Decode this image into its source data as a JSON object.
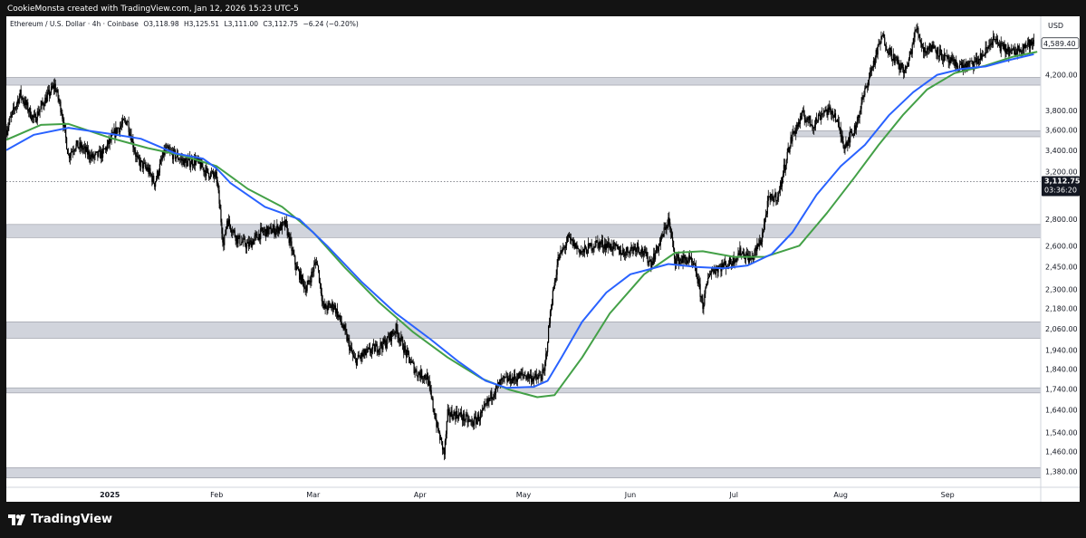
{
  "header": {
    "caption": "CookieMonsta created with TradingView.com, Jan 12, 2026 15:23 UTC-5"
  },
  "legend": {
    "symbol": "Ethereum / U.S. Dollar · 4h · Coinbase",
    "open": "O3,118.98",
    "high": "H3,125.51",
    "low": "L3,111.00",
    "close": "C3,112.75",
    "change": "−6.24 (−0.20%)"
  },
  "price_axis": {
    "currency": "USD",
    "current_price_label": "3,112.75",
    "countdown": "03:36:20",
    "top_price_label": "4,589.40"
  },
  "footer": {
    "brand": "TradingView"
  },
  "colors": {
    "candles": "#000000",
    "ma_fast": "#2962ff",
    "ma_slow": "#43a047",
    "zones": "#d1d4dc",
    "background": "#ffffff",
    "frame": "#131313"
  },
  "chart_data": {
    "type": "line",
    "log_scale": true,
    "grid": false,
    "y_range": [
      1320,
      4950
    ],
    "x_range": [
      "2024-12-02",
      "2025-09-28"
    ],
    "y_ticks": [
      {
        "value": 1380,
        "label": "1,380.00"
      },
      {
        "value": 1460,
        "label": "1,460.00"
      },
      {
        "value": 1540,
        "label": "1,540.00"
      },
      {
        "value": 1640,
        "label": "1,640.00"
      },
      {
        "value": 1740,
        "label": "1,740.00"
      },
      {
        "value": 1840,
        "label": "1,840.00"
      },
      {
        "value": 1940,
        "label": "1,940.00"
      },
      {
        "value": 2060,
        "label": "2,060.00"
      },
      {
        "value": 2180,
        "label": "2,180.00"
      },
      {
        "value": 2300,
        "label": "2,300.00"
      },
      {
        "value": 2450,
        "label": "2,450.00"
      },
      {
        "value": 2600,
        "label": "2,600.00"
      },
      {
        "value": 2800,
        "label": "2,800.00"
      },
      {
        "value": 3200,
        "label": "3,200.00"
      },
      {
        "value": 3400,
        "label": "3,400.00"
      },
      {
        "value": 3600,
        "label": "3,600.00"
      },
      {
        "value": 3800,
        "label": "3,800.00"
      },
      {
        "value": 4200,
        "label": "4,200.00"
      }
    ],
    "x_ticks": [
      {
        "date": "2025-01-01",
        "label": "2025",
        "bold": true
      },
      {
        "date": "2025-02-01",
        "label": "Feb"
      },
      {
        "date": "2025-03-01",
        "label": "Mar"
      },
      {
        "date": "2025-04-01",
        "label": "Apr"
      },
      {
        "date": "2025-05-01",
        "label": "May"
      },
      {
        "date": "2025-06-01",
        "label": "Jun"
      },
      {
        "date": "2025-07-01",
        "label": "Jul"
      },
      {
        "date": "2025-08-01",
        "label": "Aug"
      },
      {
        "date": "2025-09-01",
        "label": "Sep"
      }
    ],
    "current_price": 3112.75,
    "zones": [
      {
        "from": 4080,
        "to": 4170,
        "start": "2024-12-02",
        "end": "2025-09-28"
      },
      {
        "from": 3530,
        "to": 3590,
        "start": "2025-07-19",
        "end": "2025-09-28"
      },
      {
        "from": 2660,
        "to": 2760,
        "start": "2024-12-02",
        "end": "2025-09-28"
      },
      {
        "from": 2005,
        "to": 2100,
        "start": "2024-12-02",
        "end": "2025-09-28"
      },
      {
        "from": 1720,
        "to": 1745,
        "start": "2024-12-02",
        "end": "2025-09-28"
      },
      {
        "from": 1355,
        "to": 1395,
        "start": "2024-12-02",
        "end": "2025-09-28"
      }
    ],
    "series": [
      {
        "kind": "price",
        "points": [
          [
            "2024-12-02",
            3600
          ],
          [
            "2024-12-06",
            3980
          ],
          [
            "2024-12-10",
            3700
          ],
          [
            "2024-12-13",
            3900
          ],
          [
            "2024-12-16",
            4080
          ],
          [
            "2024-12-18",
            3800
          ],
          [
            "2024-12-20",
            3350
          ],
          [
            "2024-12-22",
            3450
          ],
          [
            "2024-12-24",
            3420
          ],
          [
            "2024-12-27",
            3330
          ],
          [
            "2024-12-30",
            3370
          ],
          [
            "2025-01-03",
            3600
          ],
          [
            "2025-01-06",
            3700
          ],
          [
            "2025-01-09",
            3300
          ],
          [
            "2025-01-12",
            3220
          ],
          [
            "2025-01-14",
            3100
          ],
          [
            "2025-01-17",
            3400
          ],
          [
            "2025-01-20",
            3350
          ],
          [
            "2025-01-23",
            3280
          ],
          [
            "2025-01-26",
            3300
          ],
          [
            "2025-01-29",
            3200
          ],
          [
            "2025-02-01",
            3150
          ],
          [
            "2025-02-03",
            2600
          ],
          [
            "2025-02-04",
            2800
          ],
          [
            "2025-02-07",
            2650
          ],
          [
            "2025-02-10",
            2600
          ],
          [
            "2025-02-14",
            2700
          ],
          [
            "2025-02-18",
            2720
          ],
          [
            "2025-02-21",
            2760
          ],
          [
            "2025-02-24",
            2450
          ],
          [
            "2025-02-27",
            2300
          ],
          [
            "2025-03-02",
            2500
          ],
          [
            "2025-03-04",
            2180
          ],
          [
            "2025-03-07",
            2200
          ],
          [
            "2025-03-10",
            2050
          ],
          [
            "2025-03-13",
            1880
          ],
          [
            "2025-03-16",
            1920
          ],
          [
            "2025-03-19",
            1950
          ],
          [
            "2025-03-22",
            1980
          ],
          [
            "2025-03-25",
            2060
          ],
          [
            "2025-03-28",
            1920
          ],
          [
            "2025-03-31",
            1820
          ],
          [
            "2025-04-03",
            1800
          ],
          [
            "2025-04-06",
            1560
          ],
          [
            "2025-04-08",
            1450
          ],
          [
            "2025-04-09",
            1620
          ],
          [
            "2025-04-12",
            1620
          ],
          [
            "2025-04-16",
            1580
          ],
          [
            "2025-04-19",
            1620
          ],
          [
            "2025-04-22",
            1720
          ],
          [
            "2025-04-25",
            1780
          ],
          [
            "2025-04-28",
            1790
          ],
          [
            "2025-05-01",
            1810
          ],
          [
            "2025-05-05",
            1790
          ],
          [
            "2025-05-07",
            1820
          ],
          [
            "2025-05-09",
            2200
          ],
          [
            "2025-05-11",
            2500
          ],
          [
            "2025-05-14",
            2650
          ],
          [
            "2025-05-18",
            2550
          ],
          [
            "2025-05-22",
            2620
          ],
          [
            "2025-05-26",
            2600
          ],
          [
            "2025-05-30",
            2550
          ],
          [
            "2025-06-03",
            2600
          ],
          [
            "2025-06-07",
            2480
          ],
          [
            "2025-06-10",
            2650
          ],
          [
            "2025-06-12",
            2800
          ],
          [
            "2025-06-14",
            2500
          ],
          [
            "2025-06-18",
            2500
          ],
          [
            "2025-06-20",
            2420
          ],
          [
            "2025-06-22",
            2200
          ],
          [
            "2025-06-24",
            2420
          ],
          [
            "2025-06-27",
            2450
          ],
          [
            "2025-06-30",
            2480
          ],
          [
            "2025-07-03",
            2560
          ],
          [
            "2025-07-06",
            2500
          ],
          [
            "2025-07-09",
            2650
          ],
          [
            "2025-07-11",
            2950
          ],
          [
            "2025-07-14",
            3000
          ],
          [
            "2025-07-16",
            3300
          ],
          [
            "2025-07-18",
            3550
          ],
          [
            "2025-07-21",
            3750
          ],
          [
            "2025-07-24",
            3650
          ],
          [
            "2025-07-27",
            3800
          ],
          [
            "2025-07-30",
            3780
          ],
          [
            "2025-08-02",
            3450
          ],
          [
            "2025-08-05",
            3600
          ],
          [
            "2025-08-09",
            4150
          ],
          [
            "2025-08-13",
            4680
          ],
          [
            "2025-08-15",
            4500
          ],
          [
            "2025-08-18",
            4300
          ],
          [
            "2025-08-20",
            4250
          ],
          [
            "2025-08-23",
            4800
          ],
          [
            "2025-08-25",
            4500
          ],
          [
            "2025-08-28",
            4550
          ],
          [
            "2025-08-31",
            4400
          ],
          [
            "2025-09-03",
            4320
          ],
          [
            "2025-09-06",
            4300
          ],
          [
            "2025-09-09",
            4340
          ],
          [
            "2025-09-12",
            4480
          ],
          [
            "2025-09-14",
            4650
          ],
          [
            "2025-09-17",
            4520
          ],
          [
            "2025-09-20",
            4470
          ],
          [
            "2025-09-23",
            4560
          ],
          [
            "2025-09-26",
            4589
          ]
        ]
      },
      {
        "kind": "ma_fast",
        "points": [
          [
            "2024-12-02",
            3400
          ],
          [
            "2024-12-10",
            3550
          ],
          [
            "2024-12-20",
            3620
          ],
          [
            "2025-01-01",
            3560
          ],
          [
            "2025-01-10",
            3510
          ],
          [
            "2025-01-20",
            3370
          ],
          [
            "2025-01-28",
            3320
          ],
          [
            "2025-02-01",
            3230
          ],
          [
            "2025-02-05",
            3100
          ],
          [
            "2025-02-15",
            2900
          ],
          [
            "2025-02-25",
            2800
          ],
          [
            "2025-03-05",
            2600
          ],
          [
            "2025-03-15",
            2350
          ],
          [
            "2025-03-25",
            2150
          ],
          [
            "2025-04-04",
            2000
          ],
          [
            "2025-04-12",
            1880
          ],
          [
            "2025-04-20",
            1780
          ],
          [
            "2025-04-26",
            1745
          ],
          [
            "2025-05-04",
            1750
          ],
          [
            "2025-05-08",
            1780
          ],
          [
            "2025-05-12",
            1900
          ],
          [
            "2025-05-18",
            2100
          ],
          [
            "2025-05-25",
            2280
          ],
          [
            "2025-06-01",
            2400
          ],
          [
            "2025-06-06",
            2430
          ],
          [
            "2025-06-12",
            2470
          ],
          [
            "2025-06-20",
            2450
          ],
          [
            "2025-06-28",
            2440
          ],
          [
            "2025-07-05",
            2460
          ],
          [
            "2025-07-12",
            2540
          ],
          [
            "2025-07-18",
            2700
          ],
          [
            "2025-07-25",
            3000
          ],
          [
            "2025-08-01",
            3250
          ],
          [
            "2025-08-08",
            3450
          ],
          [
            "2025-08-15",
            3750
          ],
          [
            "2025-08-22",
            4000
          ],
          [
            "2025-08-29",
            4200
          ],
          [
            "2025-09-05",
            4270
          ],
          [
            "2025-09-12",
            4300
          ],
          [
            "2025-09-19",
            4380
          ],
          [
            "2025-09-26",
            4450
          ]
        ]
      },
      {
        "kind": "ma_slow",
        "points": [
          [
            "2024-12-02",
            3500
          ],
          [
            "2024-12-12",
            3650
          ],
          [
            "2024-12-20",
            3660
          ],
          [
            "2025-01-01",
            3520
          ],
          [
            "2025-01-12",
            3420
          ],
          [
            "2025-01-22",
            3350
          ],
          [
            "2025-02-01",
            3250
          ],
          [
            "2025-02-10",
            3050
          ],
          [
            "2025-02-20",
            2900
          ],
          [
            "2025-03-01",
            2700
          ],
          [
            "2025-03-10",
            2450
          ],
          [
            "2025-03-20",
            2220
          ],
          [
            "2025-03-30",
            2040
          ],
          [
            "2025-04-09",
            1900
          ],
          [
            "2025-04-19",
            1790
          ],
          [
            "2025-04-27",
            1735
          ],
          [
            "2025-05-05",
            1700
          ],
          [
            "2025-05-10",
            1710
          ],
          [
            "2025-05-18",
            1900
          ],
          [
            "2025-05-26",
            2150
          ],
          [
            "2025-06-05",
            2400
          ],
          [
            "2025-06-14",
            2550
          ],
          [
            "2025-06-22",
            2560
          ],
          [
            "2025-07-01",
            2520
          ],
          [
            "2025-07-10",
            2520
          ],
          [
            "2025-07-20",
            2600
          ],
          [
            "2025-07-28",
            2850
          ],
          [
            "2025-08-05",
            3150
          ],
          [
            "2025-08-12",
            3450
          ],
          [
            "2025-08-19",
            3750
          ],
          [
            "2025-08-26",
            4030
          ],
          [
            "2025-09-03",
            4220
          ],
          [
            "2025-09-12",
            4310
          ],
          [
            "2025-09-20",
            4420
          ],
          [
            "2025-09-27",
            4480
          ]
        ]
      }
    ]
  }
}
